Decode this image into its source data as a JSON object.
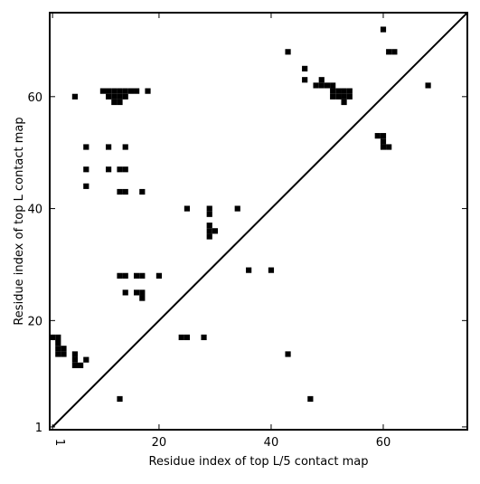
{
  "chart_data": {
    "type": "scatter",
    "title": "",
    "xlabel": "Residue index of top L/5 contact map",
    "ylabel": "Residue index of top L contact map",
    "xlim": [
      0.5,
      75
    ],
    "ylim": [
      0.5,
      75
    ],
    "x_ticks": [
      1,
      20,
      40,
      60
    ],
    "y_ticks": [
      1,
      20,
      40,
      60
    ],
    "grid": false,
    "legend": "none",
    "marker_color": "#000000",
    "series": [
      {
        "values": [
          [
            1,
            17
          ],
          [
            2,
            17
          ],
          [
            2,
            16
          ],
          [
            2,
            15
          ],
          [
            2,
            14
          ],
          [
            3,
            15
          ],
          [
            3,
            14
          ],
          [
            5,
            14
          ],
          [
            5,
            13
          ],
          [
            5,
            12
          ],
          [
            6,
            12
          ],
          [
            7,
            13
          ],
          [
            5,
            60
          ],
          [
            7,
            51
          ],
          [
            7,
            47
          ],
          [
            7,
            44
          ],
          [
            10,
            61
          ],
          [
            11,
            61
          ],
          [
            12,
            61
          ],
          [
            13,
            61
          ],
          [
            14,
            61
          ],
          [
            15,
            61
          ],
          [
            16,
            61
          ],
          [
            11,
            60
          ],
          [
            12,
            60
          ],
          [
            13,
            60
          ],
          [
            14,
            60
          ],
          [
            12,
            59
          ],
          [
            13,
            59
          ],
          [
            18,
            61
          ],
          [
            11,
            51
          ],
          [
            14,
            51
          ],
          [
            11,
            47
          ],
          [
            13,
            47
          ],
          [
            14,
            47
          ],
          [
            13,
            43
          ],
          [
            14,
            43
          ],
          [
            17,
            43
          ],
          [
            13,
            28
          ],
          [
            14,
            28
          ],
          [
            16,
            28
          ],
          [
            17,
            28
          ],
          [
            20,
            28
          ],
          [
            14,
            25
          ],
          [
            16,
            25
          ],
          [
            17,
            25
          ],
          [
            17,
            24
          ],
          [
            13,
            6
          ],
          [
            24,
            17
          ],
          [
            25,
            17
          ],
          [
            28,
            17
          ],
          [
            25,
            40
          ],
          [
            29,
            40
          ],
          [
            29,
            39
          ],
          [
            34,
            40
          ],
          [
            29,
            37
          ],
          [
            29,
            36
          ],
          [
            30,
            36
          ],
          [
            29,
            35
          ],
          [
            36,
            29
          ],
          [
            40,
            29
          ],
          [
            43,
            68
          ],
          [
            46,
            65
          ],
          [
            46,
            63
          ],
          [
            48,
            62
          ],
          [
            49,
            62
          ],
          [
            50,
            62
          ],
          [
            51,
            62
          ],
          [
            49,
            63
          ],
          [
            51,
            61
          ],
          [
            52,
            61
          ],
          [
            53,
            61
          ],
          [
            54,
            61
          ],
          [
            51,
            60
          ],
          [
            52,
            60
          ],
          [
            53,
            60
          ],
          [
            54,
            60
          ],
          [
            53,
            59
          ],
          [
            43,
            14
          ],
          [
            47,
            6
          ],
          [
            60,
            72
          ],
          [
            61,
            68
          ],
          [
            62,
            68
          ],
          [
            68,
            62
          ],
          [
            59,
            53
          ],
          [
            60,
            53
          ],
          [
            60,
            52
          ],
          [
            60,
            51
          ],
          [
            61,
            51
          ]
        ]
      }
    ],
    "reference_line": {
      "from": [
        1,
        1
      ],
      "to": [
        75,
        75
      ]
    }
  }
}
